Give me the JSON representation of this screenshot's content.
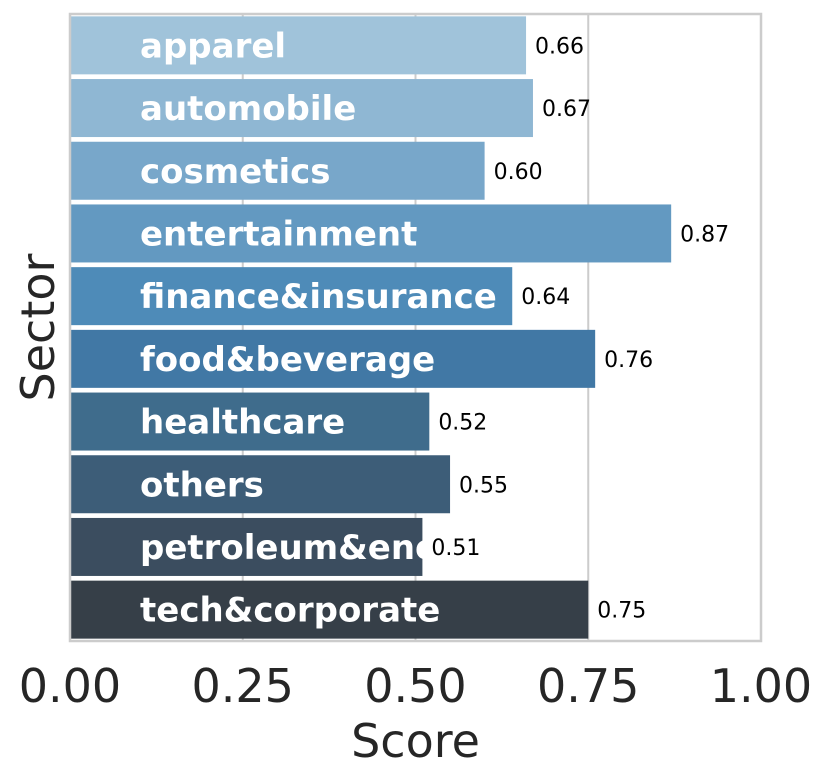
{
  "chart_data": {
    "type": "bar",
    "orientation": "horizontal",
    "categories": [
      "apparel",
      "automobile",
      "cosmetics",
      "entertainment",
      "finance&insurance",
      "food&beverage",
      "healthcare",
      "others",
      "petroleum&energy",
      "tech&corporate"
    ],
    "values": [
      0.66,
      0.67,
      0.6,
      0.87,
      0.64,
      0.76,
      0.52,
      0.55,
      0.51,
      0.75
    ],
    "value_labels": [
      "0.66",
      "0.67",
      "0.60",
      "0.87",
      "0.64",
      "0.76",
      "0.52",
      "0.55",
      "0.51",
      "0.75"
    ],
    "xlabel": "Score",
    "ylabel": "Sector",
    "xlim": [
      0,
      1
    ],
    "xticks": [
      "0.00",
      "0.25",
      "0.50",
      "0.75",
      "1.00"
    ],
    "grid": true,
    "legend": "none",
    "colors": [
      "#a0c3da",
      "#8fb7d3",
      "#78a7ca",
      "#6399c1",
      "#4e8bb8",
      "#4178a5",
      "#3f6c8c",
      "#3d5d78",
      "#3b4d5f",
      "#363f48"
    ]
  }
}
